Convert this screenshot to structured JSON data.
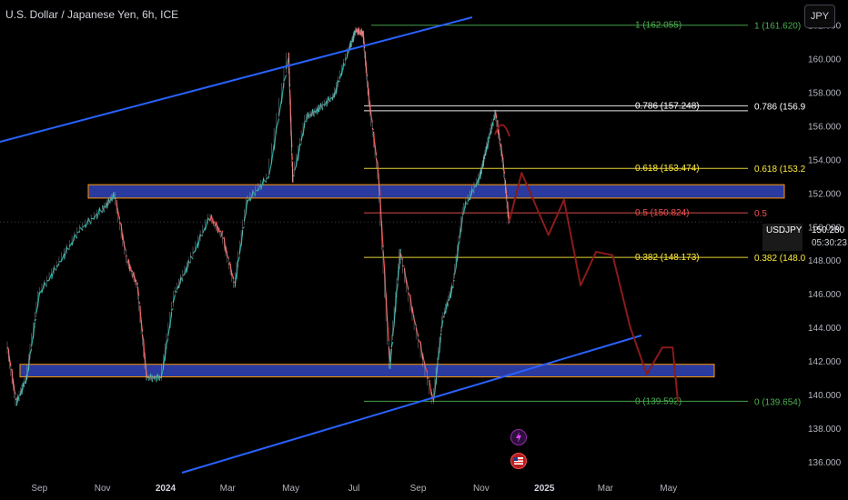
{
  "header": {
    "title": "U.S. Dollar / Japanese Yen, 6h, ICE",
    "currency_button": "JPY"
  },
  "price_badge": {
    "symbol": "USDJPY",
    "price": "150.280",
    "countdown": "05:30:23"
  },
  "colors": {
    "up": "#26a69a",
    "down": "#ef5350",
    "fib_1": "#4caf50",
    "fib_0786": "#ffffff",
    "fib_0618": "#ffeb3b",
    "fib_05": "#ef5350",
    "fib_0382": "#ffeb3b",
    "fib_0": "#4caf50",
    "channel": "#2962ff",
    "zone": "#2a3a9e",
    "zone_border": "#ff9800",
    "projection": "#8b1a1a"
  },
  "fib_labels": {
    "l1a": "1 (162.055)",
    "l1b": "1 (161.620)",
    "l786a": "0.786 (157.248)",
    "l786b": "0.786 (156.9",
    "l618a": "0.618 (153.474)",
    "l618b": "0.618 (153.2",
    "l5a": "0.5 (150.824)",
    "l5b": "0.5",
    "l382a": "0.382 (148.173)",
    "l382b": "0.382 (148.0",
    "l0a": "0 (139.592)",
    "l0b": "0 (139.654)"
  },
  "chart_data": {
    "type": "line",
    "title": "U.S. Dollar / Japanese Yen, 6h, ICE",
    "y_ticks": [
      "162.000",
      "160.000",
      "158.000",
      "156.000",
      "154.000",
      "152.000",
      "150.000",
      "148.000",
      "146.000",
      "144.000",
      "142.000",
      "140.000",
      "138.000",
      "136.000"
    ],
    "y_tick_values": [
      162,
      160,
      158,
      156,
      154,
      152,
      150,
      148,
      146,
      144,
      142,
      140,
      138,
      136
    ],
    "x_ticks": [
      "Sep",
      "Nov",
      "2024",
      "Mar",
      "May",
      "Jul",
      "Sep",
      "Nov",
      "2025",
      "Mar",
      "May"
    ],
    "x_tick_dates": [
      "2023-09-01",
      "2023-11-01",
      "2024-01-01",
      "2024-03-01",
      "2024-05-01",
      "2024-07-01",
      "2024-09-01",
      "2024-11-01",
      "2025-01-01",
      "2025-03-01",
      "2025-05-01"
    ],
    "ylim": [
      134.8,
      163.5
    ],
    "series": [
      {
        "values_date": [
          "2023-08-01",
          "2023-08-10",
          "2023-08-20",
          "2023-09-01",
          "2023-09-20",
          "2023-10-10",
          "2023-11-01",
          "2023-11-13",
          "2023-11-25",
          "2023-12-05",
          "2023-12-14",
          "2023-12-28",
          "2024-01-10",
          "2024-01-25",
          "2024-02-13",
          "2024-02-25",
          "2024-03-08",
          "2024-03-20",
          "2024-04-10",
          "2024-04-29",
          "2024-05-03",
          "2024-05-16",
          "2024-05-28",
          "2024-06-12",
          "2024-06-26",
          "2024-07-03",
          "2024-07-10",
          "2024-07-15",
          "2024-07-25",
          "2024-08-05",
          "2024-08-15",
          "2024-08-30",
          "2024-09-16",
          "2024-09-25",
          "2024-10-05",
          "2024-10-15",
          "2024-10-31",
          "2024-11-06",
          "2024-11-15",
          "2024-11-22",
          "2024-11-28"
        ],
        "values": [
          143.0,
          139.5,
          141.0,
          146.0,
          147.8,
          149.8,
          151.0,
          151.9,
          148.0,
          146.5,
          141.0,
          141.0,
          146.0,
          148.0,
          150.6,
          149.5,
          146.5,
          151.5,
          153.0,
          160.2,
          152.8,
          156.5,
          157.0,
          157.8,
          160.5,
          161.7,
          161.5,
          158.0,
          153.0,
          141.7,
          148.5,
          144.0,
          139.6,
          144.5,
          146.5,
          151.0,
          153.0,
          154.6,
          156.8,
          154.0,
          150.3
        ]
      }
    ],
    "fib_levels": [
      1,
      0.786,
      0.618,
      0.5,
      0.382,
      0
    ],
    "zones": [
      [
        151.9,
        152.5
      ],
      [
        141.1,
        141.8
      ]
    ],
    "projection": {
      "dates": [
        "2024-11-28",
        "2024-12-10",
        "2024-12-22",
        "2025-01-05",
        "2025-01-20",
        "2025-02-05",
        "2025-02-20",
        "2025-03-08",
        "2025-03-25",
        "2025-04-10",
        "2025-04-25",
        "2025-05-05",
        "2025-05-10"
      ],
      "values": [
        150.3,
        153.2,
        151.5,
        149.5,
        151.6,
        146.5,
        148.5,
        148.3,
        144.0,
        141.2,
        142.8,
        142.8,
        139.6
      ]
    }
  }
}
